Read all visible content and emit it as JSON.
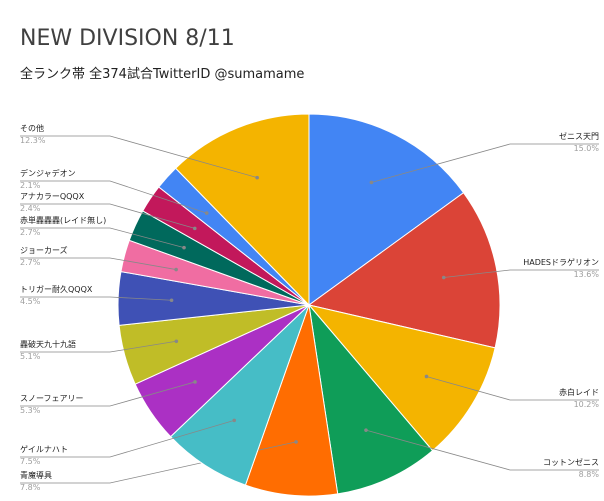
{
  "chart_data": {
    "type": "pie",
    "title": "NEW DIVISION 8/11",
    "subtitle": "全ランク帯 全374試合TwitterID @sumamame",
    "slices": [
      {
        "label": "ゼニス天門",
        "value": 15.0,
        "display": "15.0%",
        "color": "#4285f4",
        "side": "right"
      },
      {
        "label": "HADESドラゲリオン",
        "value": 13.6,
        "display": "13.6%",
        "color": "#db4437",
        "side": "right"
      },
      {
        "label": "赤白レイド",
        "value": 10.2,
        "display": "10.2%",
        "color": "#f4b400",
        "side": "right"
      },
      {
        "label": "コットンゼニス",
        "value": 8.8,
        "display": "8.8%",
        "color": "#0f9d58",
        "side": "right"
      },
      {
        "label": "青魔導具",
        "value": 7.8,
        "display": "7.8%",
        "color": "#ff6d01",
        "side": "left"
      },
      {
        "label": "ゲイルナハト",
        "value": 7.5,
        "display": "7.5%",
        "color": "#46bdc6",
        "side": "left"
      },
      {
        "label": "スノーフェアリー",
        "value": 5.3,
        "display": "5.3%",
        "color": "#ab30c4",
        "side": "left"
      },
      {
        "label": "轟破天九十九語",
        "value": 5.1,
        "display": "5.1%",
        "color": "#c0bd27",
        "side": "left"
      },
      {
        "label": "トリガー耐久QQQX",
        "value": 4.5,
        "display": "4.5%",
        "color": "#3f51b5",
        "side": "left"
      },
      {
        "label": "ジョーカーズ",
        "value": 2.7,
        "display": "2.7%",
        "color": "#f06da2",
        "side": "left"
      },
      {
        "label": "赤単轟轟轟(レイド無し)",
        "value": 2.7,
        "display": "2.7%",
        "color": "#00695c",
        "side": "left"
      },
      {
        "label": "アナカラーQQQX",
        "value": 2.4,
        "display": "2.4%",
        "color": "#c2185b",
        "side": "left"
      },
      {
        "label": "デンジャデオン",
        "value": 2.1,
        "display": "2.1%",
        "color": "#4285f4",
        "side": "left"
      },
      {
        "label": "その他",
        "value": 12.3,
        "display": "12.3%",
        "color": "#f4b400",
        "side": "left"
      }
    ]
  }
}
